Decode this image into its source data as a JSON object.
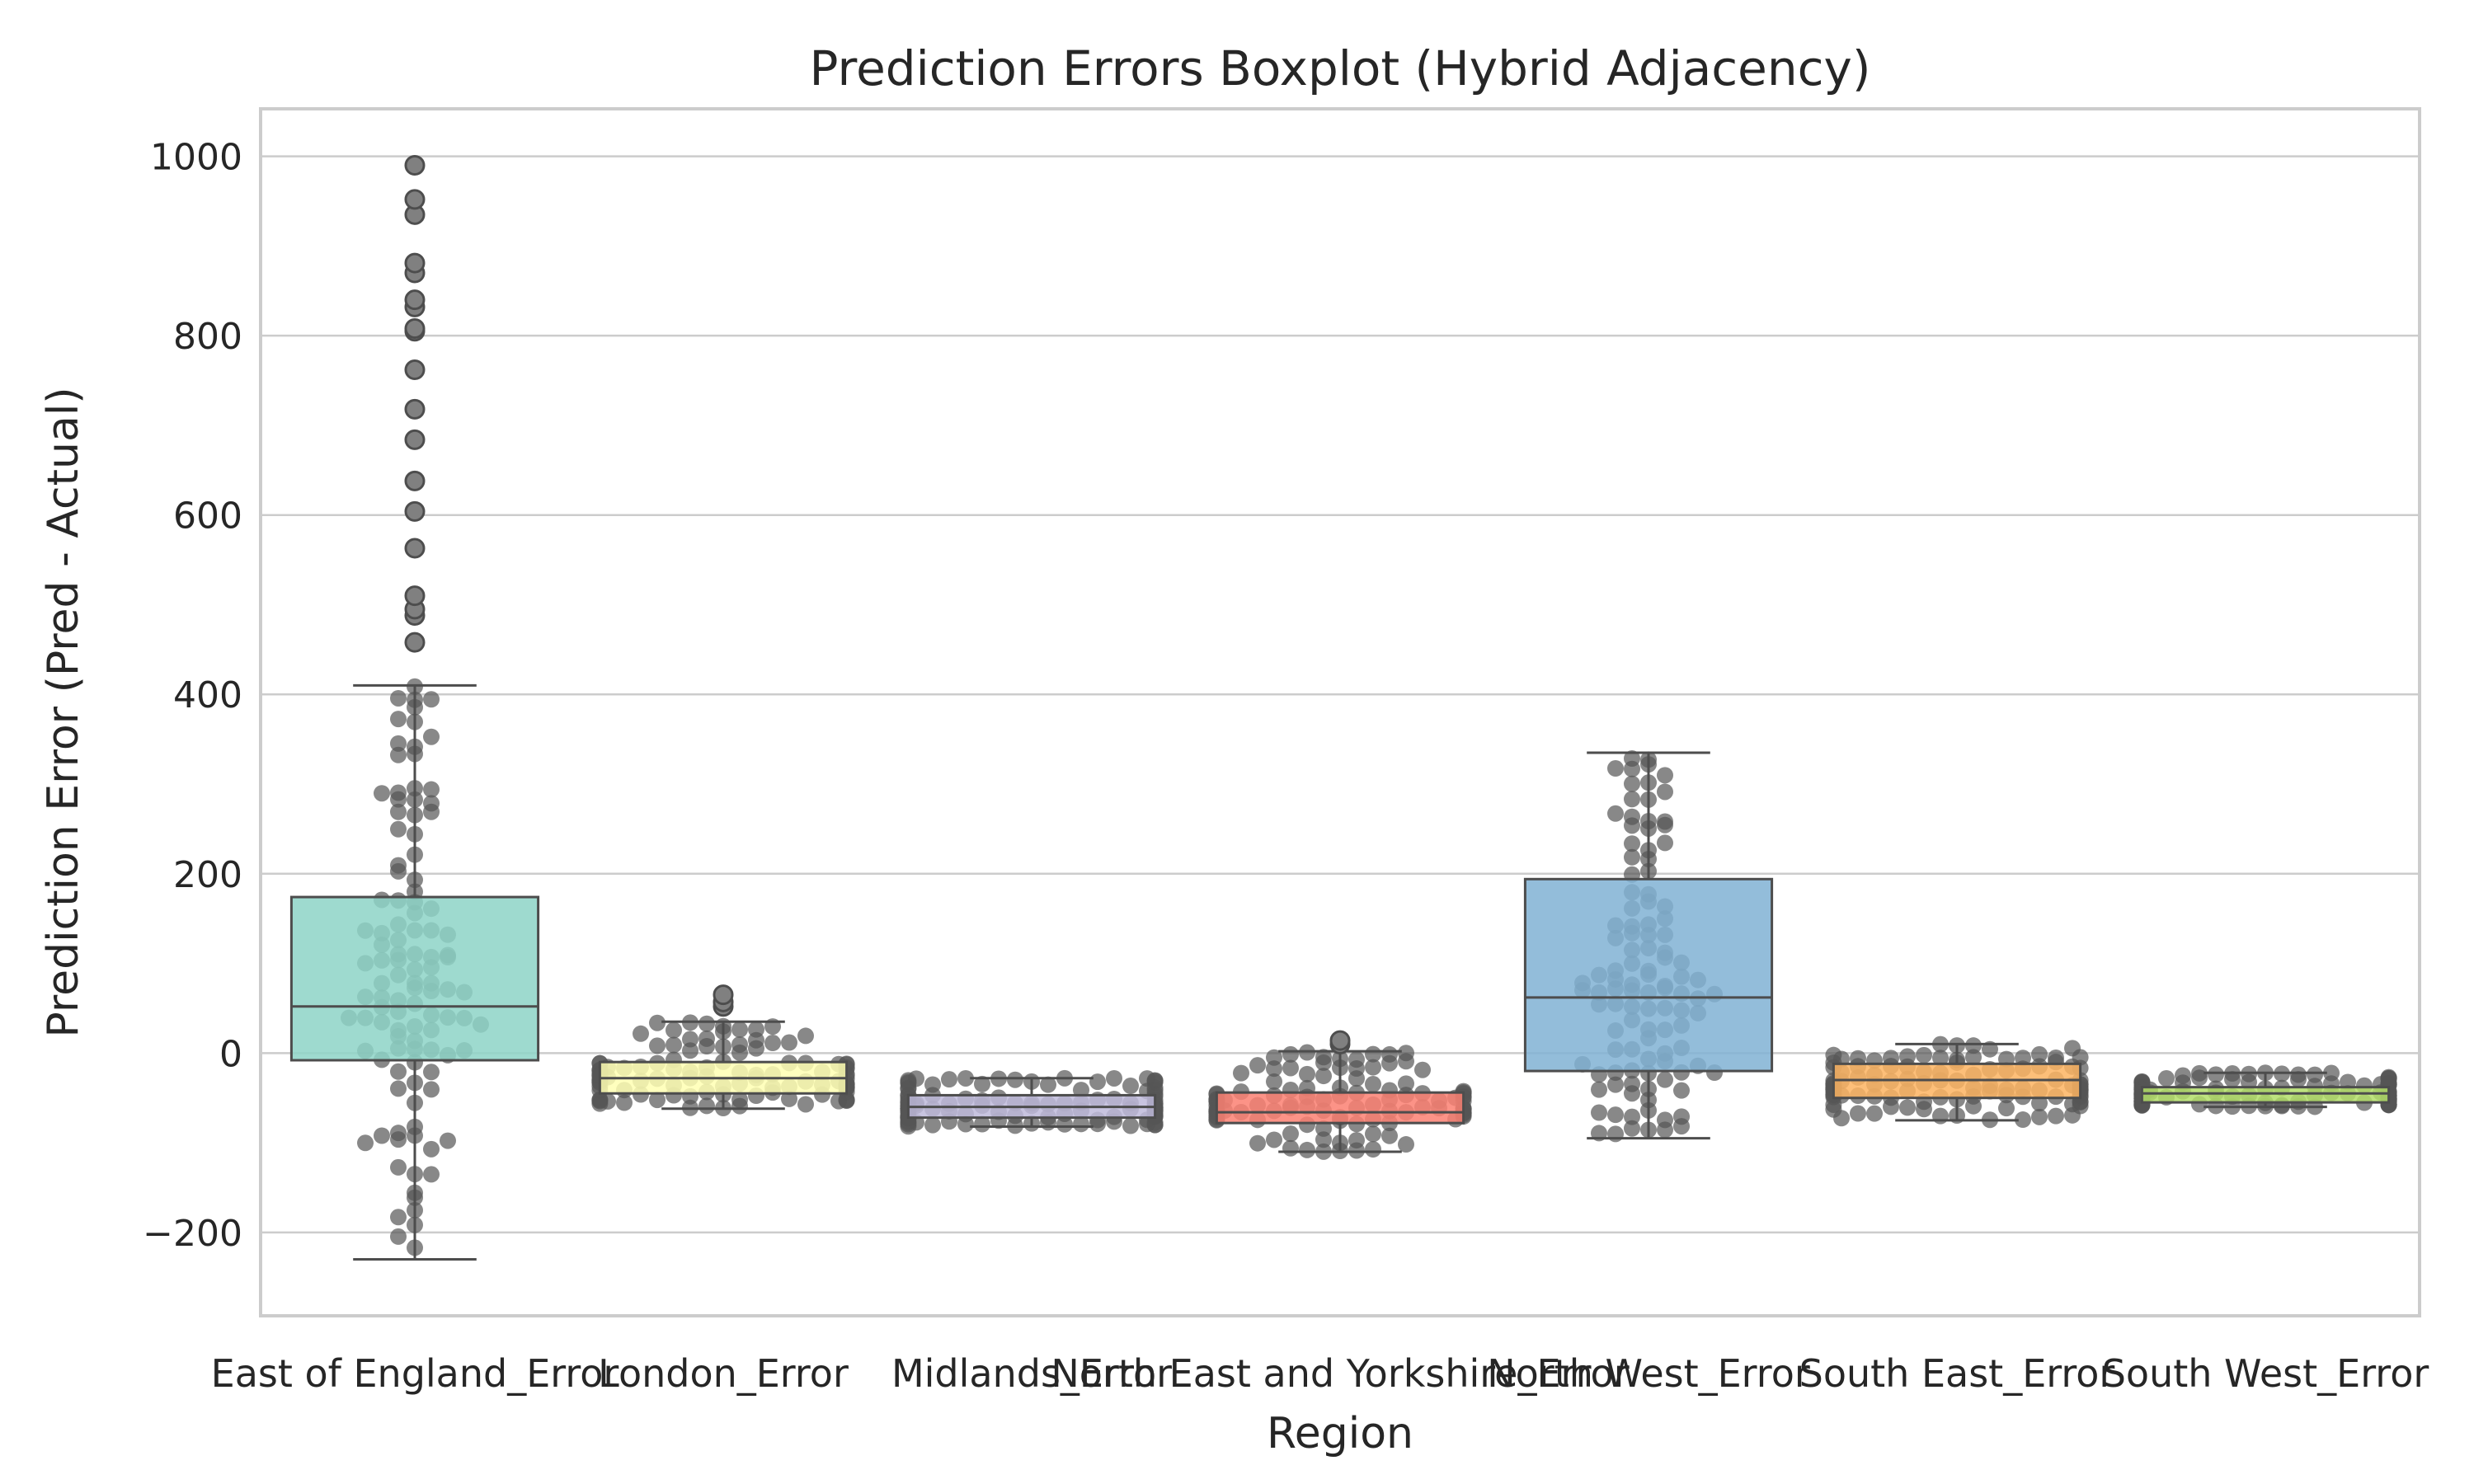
{
  "chart_data": {
    "type": "box",
    "title": "Prediction Errors Boxplot (Hybrid Adjacency)",
    "xlabel": "Region",
    "ylabel": "Prediction Error (Pred - Actual)",
    "ylim": [
      -293,
      1053
    ],
    "yticks": [
      -200,
      0,
      200,
      400,
      600,
      800,
      1000
    ],
    "grid": true,
    "legend": "none",
    "categories": [
      "East of England_Error",
      "London_Error",
      "Midlands_Error",
      "North East and Yorkshire_Error",
      "North West_Error",
      "South East_Error",
      "South West_Error"
    ],
    "series": [
      {
        "whisker_low": -230,
        "q1": -8,
        "median": 52,
        "q3": 174,
        "whisker_high": 410,
        "color": "#8dd3c7",
        "outliers": [
          458,
          488,
          495,
          510,
          563,
          604,
          638,
          684,
          718,
          762,
          805,
          808,
          832,
          840,
          870,
          881,
          935,
          952,
          990
        ]
      },
      {
        "whisker_low": -62,
        "q1": -45,
        "median": -28,
        "q3": -10,
        "whisker_high": 35,
        "color": "#ffffb3",
        "outliers": [
          52,
          57,
          65
        ]
      },
      {
        "whisker_low": -82,
        "q1": -72,
        "median": -60,
        "q3": -47,
        "whisker_high": -28,
        "color": "#bebada",
        "outliers": []
      },
      {
        "whisker_low": -110,
        "q1": -78,
        "median": -66,
        "q3": -44,
        "whisker_high": 2,
        "color": "#fb8072",
        "outliers": [
          10,
          14
        ]
      },
      {
        "whisker_low": -95,
        "q1": -20,
        "median": 62,
        "q3": 194,
        "whisker_high": 335,
        "color": "#80b1d3",
        "outliers": []
      },
      {
        "whisker_low": -75,
        "q1": -50,
        "median": -30,
        "q3": -12,
        "whisker_high": 10,
        "color": "#fdb462",
        "outliers": []
      },
      {
        "whisker_low": -60,
        "q1": -55,
        "median": -45,
        "q3": -38,
        "whisker_high": -22,
        "color": "#b3de69",
        "outliers": []
      }
    ],
    "swarm_color": "#555555"
  }
}
